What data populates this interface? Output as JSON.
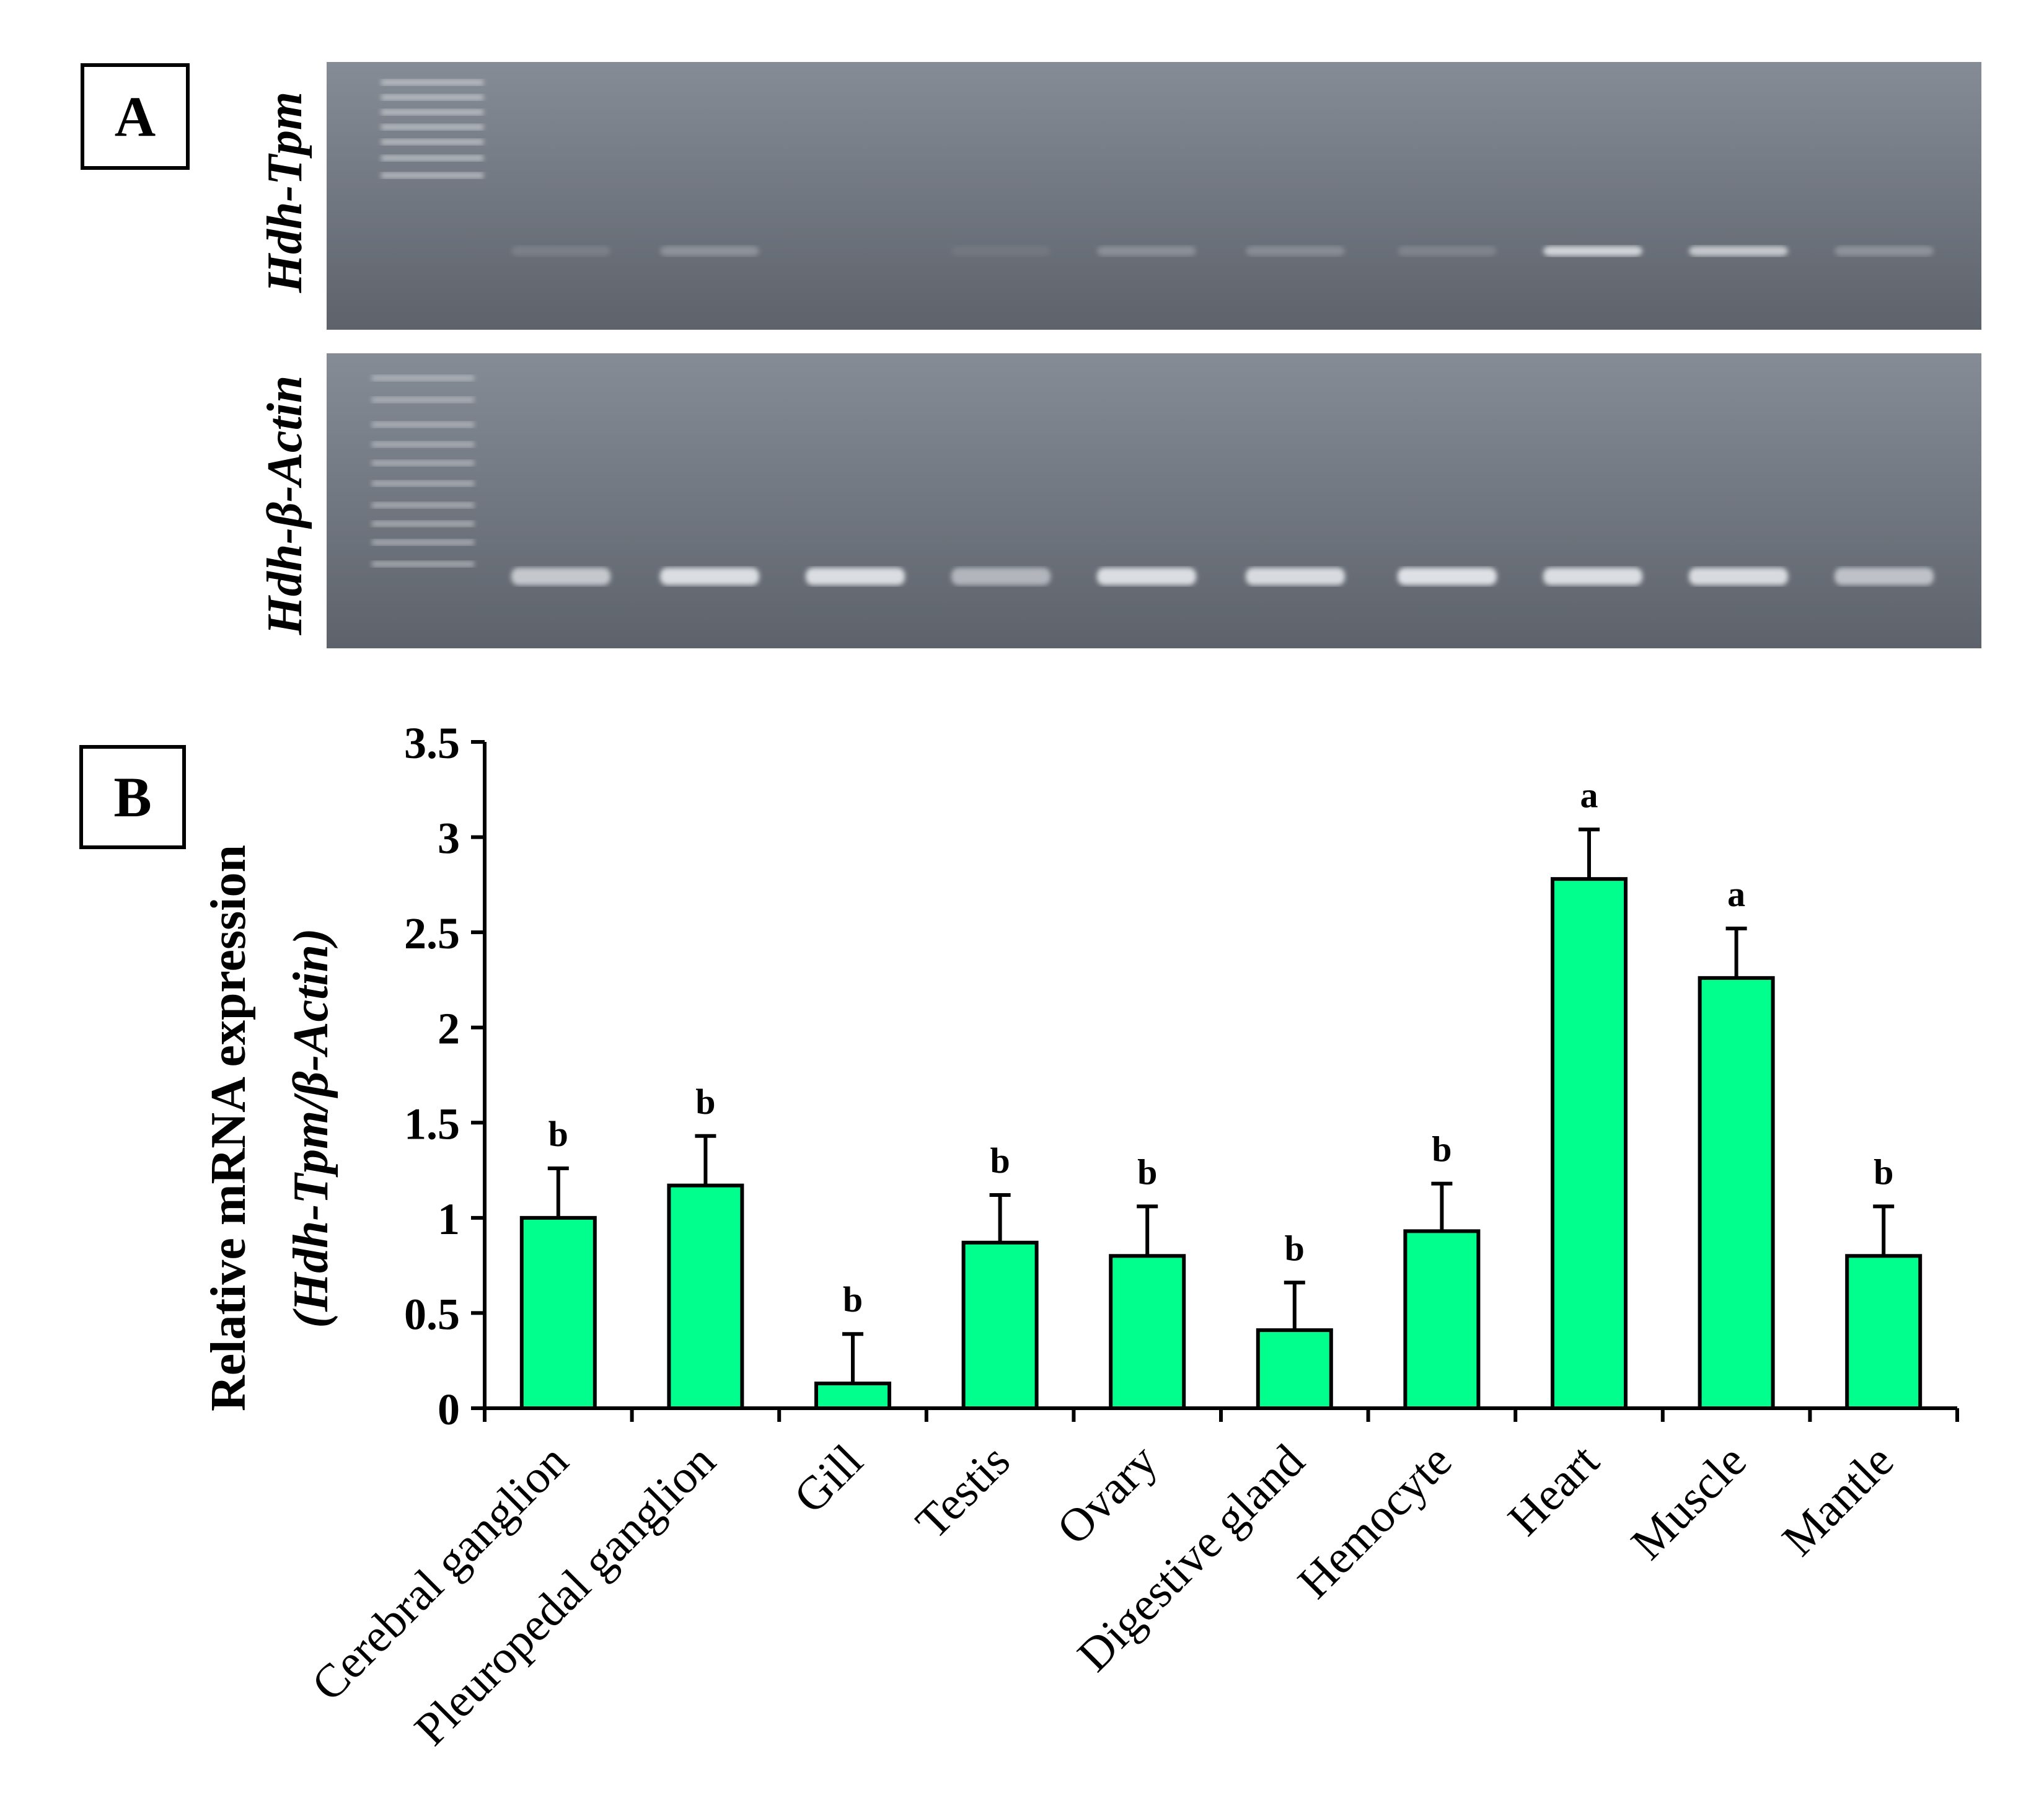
{
  "panel_a": {
    "label": "A",
    "gels": [
      {
        "name": "Hdh-Tpm",
        "bands": [
          0.15,
          0.3,
          0.0,
          0.08,
          0.28,
          0.25,
          0.18,
          0.85,
          0.75,
          0.3
        ]
      },
      {
        "name": "Hdh-β-Actin",
        "bands": [
          0.75,
          0.92,
          0.92,
          0.6,
          0.92,
          0.9,
          0.95,
          0.92,
          0.9,
          0.7
        ]
      }
    ]
  },
  "panel_b": {
    "label": "B"
  },
  "chart_data": {
    "type": "bar",
    "ylabel_line1": "Relative mRNA expression",
    "ylabel_line2": "(Hdh-Tpm/β-Actin)",
    "ylim": [
      0,
      3.5
    ],
    "ytick_values": [
      0,
      0.5,
      1,
      1.5,
      2,
      2.5,
      3,
      3.5
    ],
    "ytick_labels": [
      "0",
      "0.5",
      "1",
      "1.5",
      "2",
      "2.5",
      "3",
      "3.5"
    ],
    "categories": [
      "Cerebral ganglion",
      "Pleuropedal ganglion",
      "Gill",
      "Testis",
      "Ovary",
      "Digestive gland",
      "Hemocyte",
      "Heart",
      "Muscle",
      "Mantle"
    ],
    "values": [
      1.0,
      1.17,
      0.13,
      0.87,
      0.8,
      0.41,
      0.93,
      2.78,
      2.26,
      0.8
    ],
    "errors": [
      0.26,
      0.26,
      0.26,
      0.25,
      0.26,
      0.25,
      0.25,
      0.26,
      0.26,
      0.26
    ],
    "significance": [
      "b",
      "b",
      "b",
      "b",
      "b",
      "b",
      "b",
      "a",
      "a",
      "b"
    ],
    "bar_color": "#00ff8c"
  }
}
